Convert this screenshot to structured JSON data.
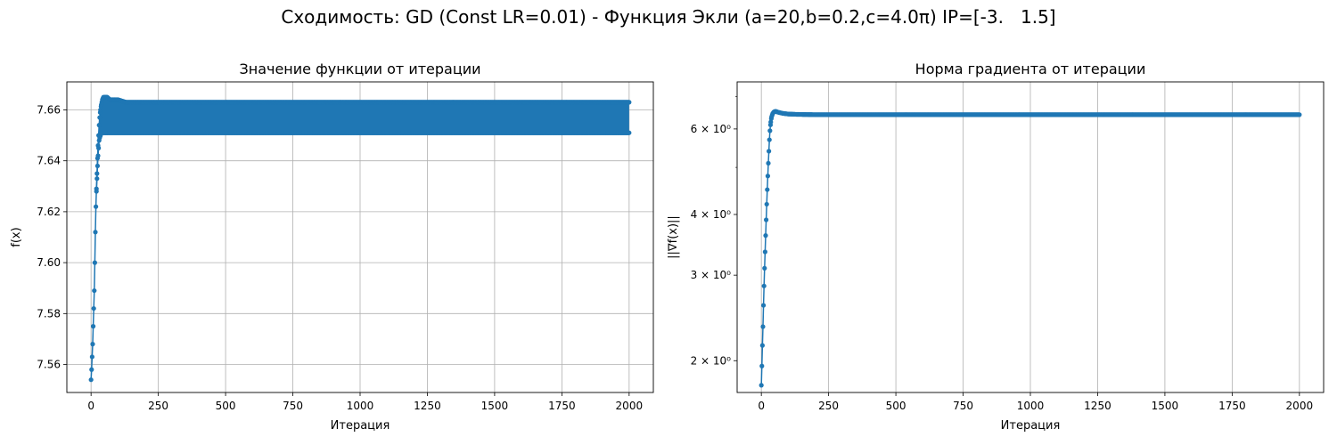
{
  "suptitle": "Сходимость: GD (Const LR=0.01) - Функция Экли (a=20,b=0.2,c=4.0π) IP=[-3.   1.5]",
  "colors": {
    "series": "#1f77b4",
    "grid": "#b0b0b0",
    "axes": "#000000"
  },
  "chart_data": [
    {
      "type": "line",
      "title": "Значение функции от итерации",
      "xlabel": "Итерация",
      "ylabel": "f(x)",
      "xlim": [
        -90,
        2090
      ],
      "ylim": [
        7.549,
        7.671
      ],
      "xticks": [
        0,
        250,
        500,
        750,
        1000,
        1250,
        1500,
        1750,
        2000
      ],
      "xtick_labels": [
        "0",
        "250",
        "500",
        "750",
        "1000",
        "1250",
        "1500",
        "1750",
        "2000"
      ],
      "yticks": [
        7.56,
        7.58,
        7.6,
        7.62,
        7.64,
        7.66
      ],
      "ytick_labels": [
        "7.56",
        "7.58",
        "7.60",
        "7.62",
        "7.64",
        "7.66"
      ],
      "grid": true,
      "marker": "o",
      "series": [
        {
          "x": [
            0,
            2,
            4,
            6,
            8,
            10,
            12,
            14,
            16,
            18,
            20,
            22,
            24,
            26,
            28,
            30,
            32,
            35,
            38,
            42,
            46,
            50,
            55,
            60,
            70,
            80,
            100,
            130,
            200,
            500,
            1000,
            1500,
            2000
          ],
          "y": [
            7.554,
            7.558,
            7.563,
            7.568,
            7.575,
            7.582,
            7.589,
            7.6,
            7.612,
            7.622,
            7.629,
            7.635,
            7.641,
            7.646,
            7.65,
            7.654,
            7.657,
            7.66,
            7.662,
            7.664,
            7.665,
            7.665,
            7.665,
            7.665,
            7.664,
            7.664,
            7.664,
            7.663,
            7.663,
            7.663,
            7.663,
            7.663,
            7.663
          ]
        },
        {
          "x": [
            20,
            22,
            24,
            26,
            28,
            30,
            32,
            35,
            38,
            42,
            46,
            50,
            55,
            60,
            70,
            80,
            100,
            130,
            200,
            500,
            1000,
            1500,
            2000
          ],
          "y": [
            7.628,
            7.633,
            7.638,
            7.642,
            7.645,
            7.648,
            7.649,
            7.65,
            7.651,
            7.651,
            7.651,
            7.651,
            7.651,
            7.651,
            7.651,
            7.651,
            7.651,
            7.651,
            7.651,
            7.651,
            7.651,
            7.651,
            7.651
          ]
        }
      ]
    },
    {
      "type": "line",
      "title": "Норма градиента от итерации",
      "xlabel": "Итерация",
      "ylabel": "||∇f(x)||",
      "yscale": "log",
      "xlim": [
        -90,
        2090
      ],
      "ylim": [
        1.72,
        7.5
      ],
      "xticks": [
        0,
        250,
        500,
        750,
        1000,
        1250,
        1500,
        1750,
        2000
      ],
      "xtick_labels": [
        "0",
        "250",
        "500",
        "750",
        "1000",
        "1250",
        "1500",
        "1750",
        "2000"
      ],
      "yticks": [
        2,
        3,
        4,
        6
      ],
      "ytick_labels": [
        "2 × 10⁰",
        "3 × 10⁰",
        "4 × 10⁰",
        "6 × 10⁰"
      ],
      "yminor_ticks": [
        5,
        7
      ],
      "grid": true,
      "marker": "o",
      "series": [
        {
          "x": [
            0,
            2,
            4,
            6,
            8,
            10,
            12,
            14,
            16,
            18,
            20,
            22,
            24,
            26,
            28,
            30,
            32,
            35,
            38,
            42,
            46,
            50,
            55,
            60,
            70,
            80,
            100,
            130,
            200,
            500,
            1000,
            1500,
            2000
          ],
          "y": [
            1.78,
            1.95,
            2.15,
            2.35,
            2.6,
            2.85,
            3.1,
            3.35,
            3.62,
            3.9,
            4.2,
            4.5,
            4.8,
            5.1,
            5.4,
            5.7,
            5.95,
            6.2,
            6.35,
            6.45,
            6.5,
            6.52,
            6.52,
            6.5,
            6.48,
            6.46,
            6.44,
            6.43,
            6.42,
            6.42,
            6.42,
            6.42,
            6.42
          ]
        }
      ]
    }
  ]
}
